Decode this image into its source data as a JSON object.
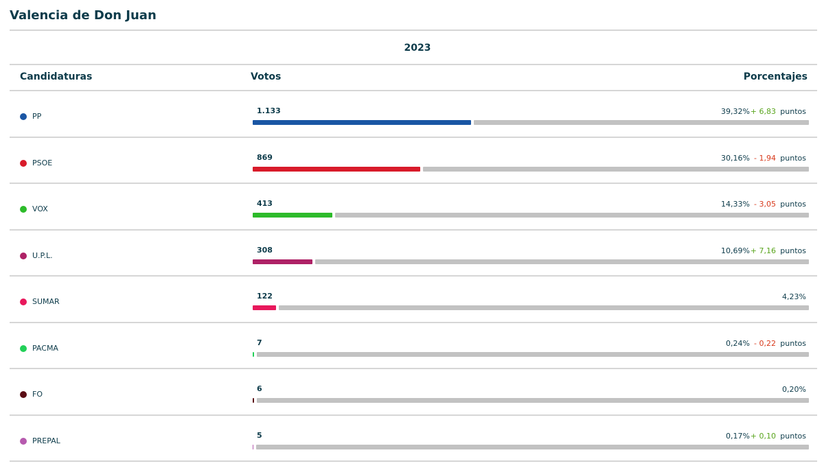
{
  "title": "Valencia de Don Juan",
  "year": "2023",
  "headers": [
    "Candidaturas",
    "Votos",
    "Porcentajes"
  ],
  "rows": [
    {
      "name": "PP",
      "color": "#1a56a4",
      "votes": "1.133",
      "percent": {
        "value": 39.32,
        "label": "39,32%"
      },
      "change": "+ 6,83",
      "unit": "puntos"
    },
    {
      "name": "PSOE",
      "color": "#d81b2a",
      "votes": "869",
      "percent": {
        "value": 30.16,
        "label": "30,16%"
      },
      "change": "- 1,94",
      "unit": "puntos"
    },
    {
      "name": "VOX",
      "color": "#2dbb2a",
      "votes": "413",
      "percent": {
        "value": 14.33,
        "label": "14,33%"
      },
      "change": "- 3,05",
      "unit": "puntos"
    },
    {
      "name": "U.P.L.",
      "color": "#ae2266",
      "votes": "308",
      "percent": {
        "value": 10.69,
        "label": "10,69%"
      },
      "change": "+ 7,16",
      "unit": "puntos"
    },
    {
      "name": "SUMAR",
      "color": "#e8185c",
      "votes": "122",
      "percent": {
        "value": 4.23,
        "label": "4,23%"
      }
    },
    {
      "name": "PACMA",
      "color": "#22d058",
      "votes": "7",
      "percent": {
        "value": 0.24,
        "label": "0,24%"
      },
      "change": "- 0,22",
      "unit": "puntos"
    },
    {
      "name": "FO",
      "color": "#5a0d14",
      "votes": "6",
      "percent": {
        "value": 0.2,
        "label": "0,20%"
      }
    },
    {
      "name": "PREPAL",
      "color": "#b65aae",
      "votes": "5",
      "percent": {
        "value": 0.17,
        "label": "0,17%"
      },
      "change": "+ 0,10",
      "unit": "puntos"
    }
  ]
}
